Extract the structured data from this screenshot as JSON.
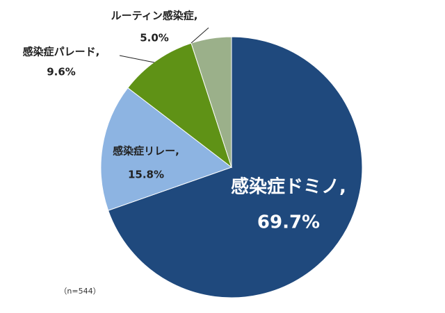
{
  "chart_data": {
    "type": "pie",
    "categories": [
      "感染症ドミノ,",
      "感染症リレー,",
      "感染症パレード,",
      "ルーティン感染症,"
    ],
    "values": [
      69.7,
      15.8,
      9.6,
      5.0
    ],
    "value_labels": [
      "69.7%",
      "15.8%",
      "9.6%",
      "5.0%"
    ],
    "colors": [
      "#1f497d",
      "#8db4e2",
      "#5f9216",
      "#9bb08a"
    ],
    "note": "（n=544）"
  }
}
